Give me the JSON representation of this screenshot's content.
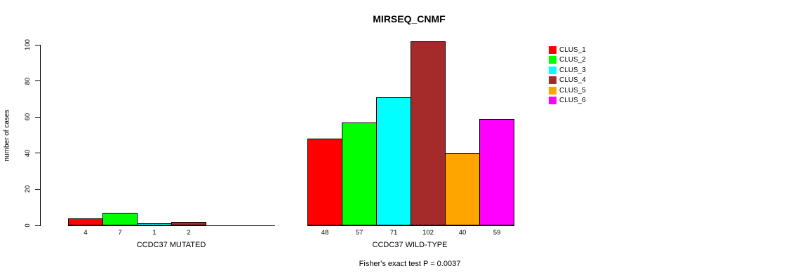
{
  "chart_data": {
    "type": "bar",
    "title": "MIRSEQ_CNMF",
    "ylabel": "number of cases",
    "ylim": [
      0,
      100
    ],
    "yticks": [
      0,
      20,
      40,
      60,
      80,
      100
    ],
    "grid": false,
    "legend_position": "right",
    "clusters": [
      {
        "name": "CLUS_1",
        "color": "#ff0000"
      },
      {
        "name": "CLUS_2",
        "color": "#00ff00"
      },
      {
        "name": "CLUS_3",
        "color": "#00ffff"
      },
      {
        "name": "CLUS_4",
        "color": "#a52a2a"
      },
      {
        "name": "CLUS_5",
        "color": "#ffa500"
      },
      {
        "name": "CLUS_6",
        "color": "#ff00ff"
      }
    ],
    "groups": [
      {
        "label": "CCDC37 MUTATED",
        "values": [
          4,
          7,
          1,
          2,
          0,
          0
        ],
        "value_labels": [
          "4",
          "7",
          "1",
          "2",
          "",
          ""
        ]
      },
      {
        "label": "CCDC37 WILD-TYPE",
        "values": [
          48,
          57,
          71,
          102,
          40,
          59
        ],
        "value_labels": [
          "48",
          "57",
          "71",
          "102",
          "40",
          "59"
        ]
      }
    ],
    "footnote": "Fisher's exact test P = 0.0037"
  }
}
